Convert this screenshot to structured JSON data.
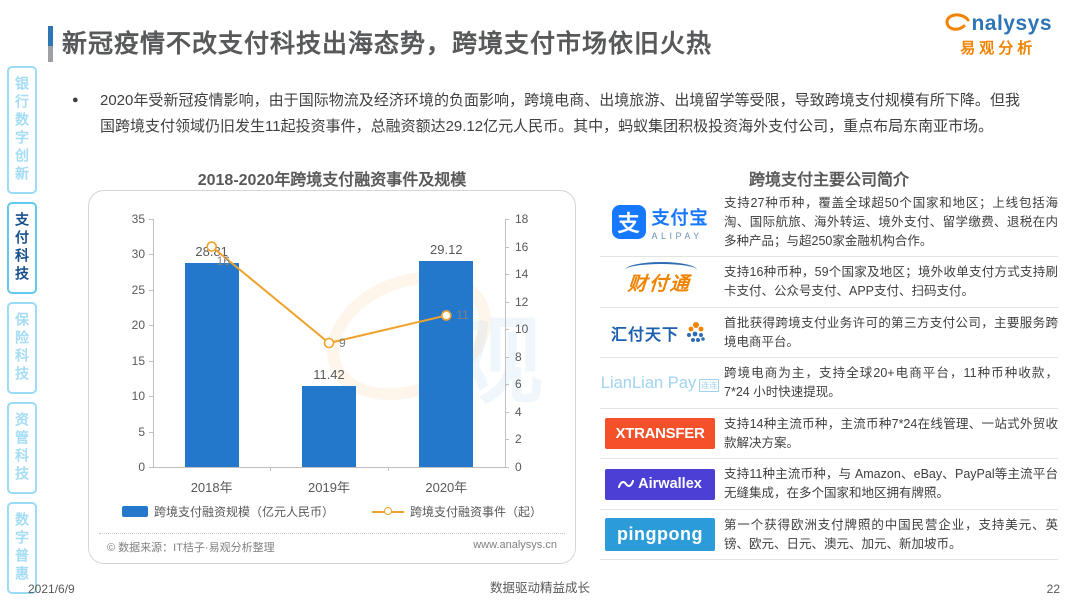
{
  "page": {
    "title": "新冠疫情不改支付科技出海态势，跨境支付市场依旧火热",
    "bullet_marker": "●",
    "intro": "2020年受新冠疫情影响，由于国际物流及经济环境的负面影响，跨境电商、出境旅游、出境留学等受限，导致跨境支付规模有所下降。但我国跨境支付领域仍旧发生11起投资事件，总融资额达29.12亿元人民币。其中，蚂蚁集团积极投资海外支付公司，重点布局东南亚市场。"
  },
  "brand": {
    "mark": "a",
    "rest": "nalysys",
    "cn": "易观分析"
  },
  "sidebar": {
    "items": [
      {
        "label": "银行数字创新",
        "active": false
      },
      {
        "label": "支付科技",
        "active": true
      },
      {
        "label": "保险科技",
        "active": false
      },
      {
        "label": "资管科技",
        "active": false
      },
      {
        "label": "数字普惠",
        "active": false
      }
    ]
  },
  "chart": {
    "title": "2018-2020年跨境支付融资事件及规模",
    "source_left": "© 数据来源：IT桔子·易观分析整理",
    "source_right": "www.analysys.cn",
    "colors": {
      "bar": "#2478CB",
      "line": "#F0A32C"
    },
    "chart_data": {
      "type": "bar",
      "title": "2018-2020年跨境支付融资事件及规模",
      "categories": [
        "2018年",
        "2019年",
        "2020年"
      ],
      "series": [
        {
          "name": "跨境支付融资规模（亿元人民币）",
          "type": "bar",
          "axis": "left",
          "values": [
            28.81,
            11.42,
            29.12
          ]
        },
        {
          "name": "跨境支付融资事件（起）",
          "type": "line",
          "axis": "right",
          "values": [
            16,
            9,
            11
          ]
        }
      ],
      "axes": {
        "left": {
          "min": 0,
          "max": 35,
          "step": 5
        },
        "right": {
          "min": 0,
          "max": 18,
          "step": 2
        }
      },
      "grid": false,
      "legend_position": "bottom"
    }
  },
  "companies": {
    "title": "跨境支付主要公司简介",
    "rows": [
      {
        "name": "支付宝",
        "logo_mark": "支",
        "logo_sub": "ALIPAY",
        "desc": "支持27种币种，覆盖全球超50个国家和地区；上线包括海淘、国际航旅、海外转运、境外支付、留学缴费、退税在内多种产品；与超250家金融机构合作。"
      },
      {
        "name": "财付通",
        "desc": "支持16种币种，59个国家及地区；境外收单支付方式支持刷卡支付、公众号支付、APP支付、扫码支付。"
      },
      {
        "name": "汇付天下",
        "desc": "首批获得跨境支付业务许可的第三方支付公司，主要服务跨境电商平台。"
      },
      {
        "name": "LianLian Pay",
        "logo_sub": "连连",
        "desc": "跨境电商为主，支持全球20+电商平台，11种币种收款，7*24 小时快速提现。"
      },
      {
        "name": "XTRANSFER",
        "desc": "支持14种主流币种，主流币种7*24在线管理、一站式外贸收款解决方案。"
      },
      {
        "name": "Airwallex",
        "desc": "支持11种主流币种，与 Amazon、eBay、PayPal等主流平台无缝集成，在多个国家和地区拥有牌照。"
      },
      {
        "name": "pingpong",
        "desc": "第一个获得欧洲支付牌照的中国民营企业，支持美元、英镑、欧元、日元、澳元、加元、新加坡币。"
      }
    ]
  },
  "footer": {
    "date": "2021/6/9",
    "center": "数据驱动精益成长",
    "page_number": "22"
  }
}
